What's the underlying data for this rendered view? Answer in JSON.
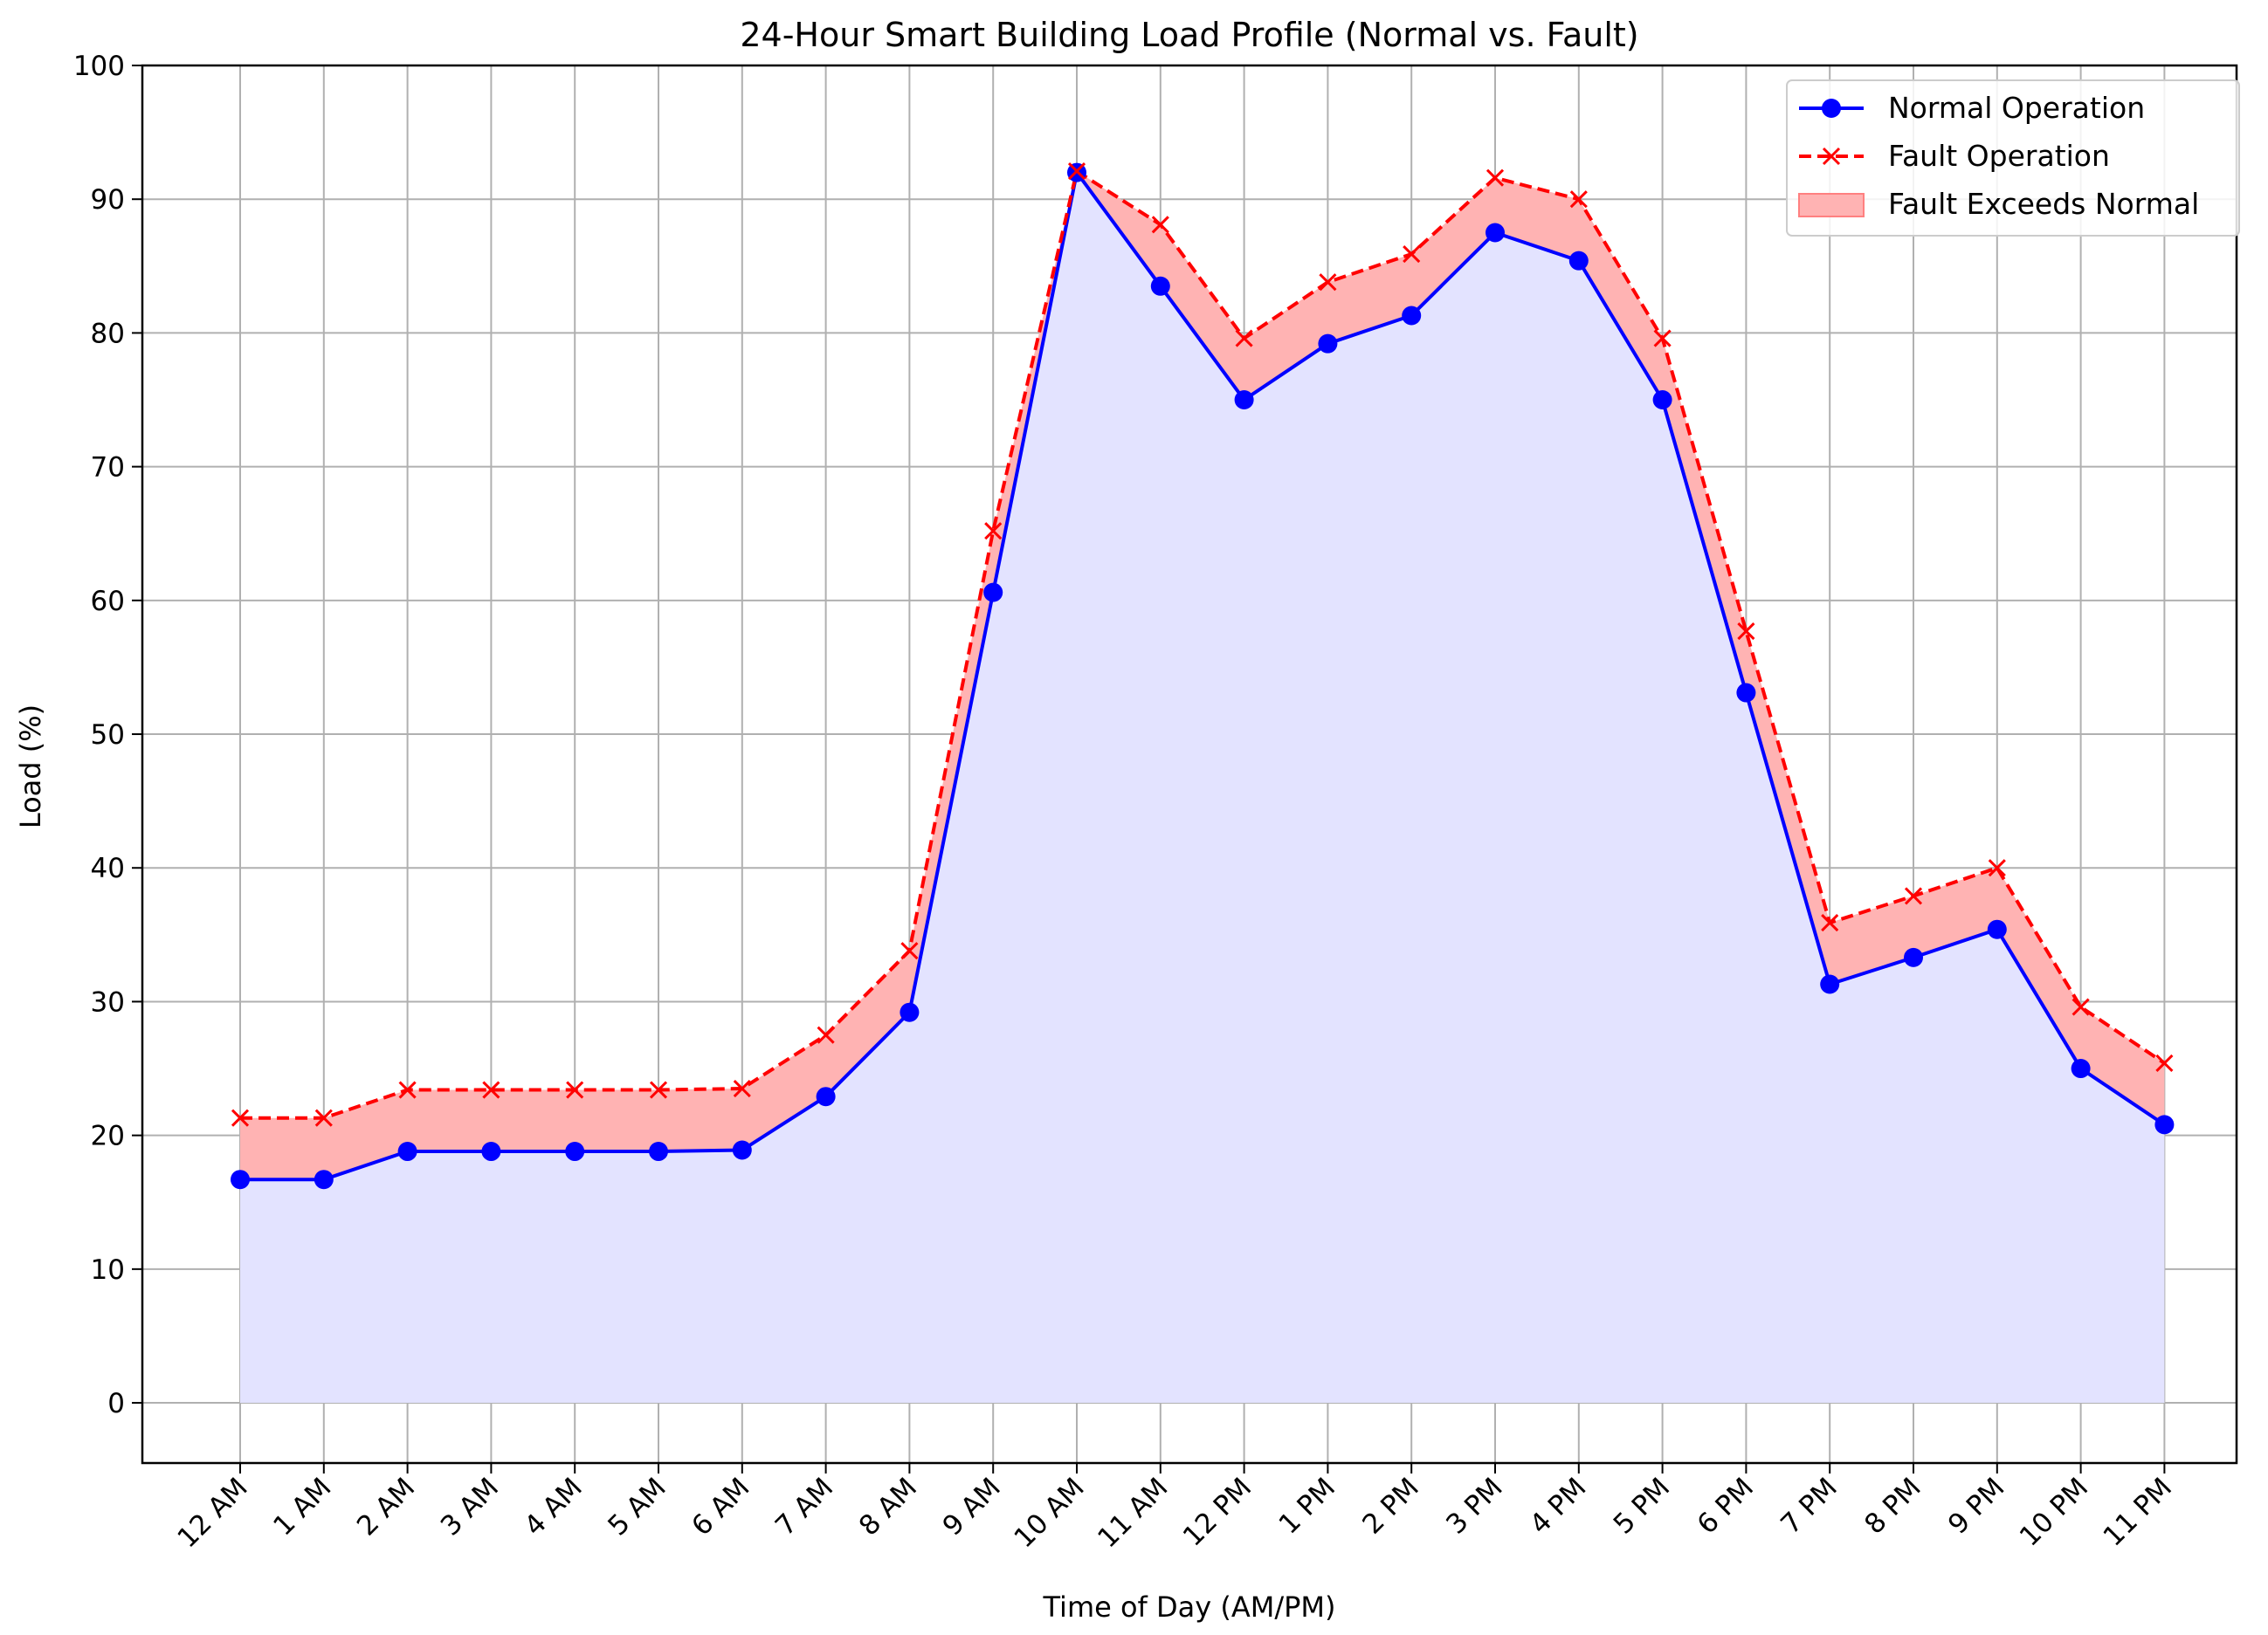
{
  "chart_data": {
    "type": "line",
    "title": "24-Hour Smart Building Load Profile (Normal vs. Fault)",
    "xlabel": "Time of Day (AM/PM)",
    "ylabel": "Load (%)",
    "ylim": [
      -4.5,
      100
    ],
    "yticks": [
      0,
      10,
      20,
      30,
      40,
      50,
      60,
      70,
      80,
      90,
      100
    ],
    "grid": true,
    "legend_position": "top-right",
    "categories": [
      "12 AM",
      "1 AM",
      "2 AM",
      "3 AM",
      "4 AM",
      "5 AM",
      "6 AM",
      "7 AM",
      "8 AM",
      "9 AM",
      "10 AM",
      "11 AM",
      "12 PM",
      "1 PM",
      "2 PM",
      "3 PM",
      "4 PM",
      "5 PM",
      "6 PM",
      "7 PM",
      "8 PM",
      "9 PM",
      "10 PM",
      "11 PM"
    ],
    "series": [
      {
        "name": "Normal Operation",
        "color": "#0000ff",
        "line_style": "solid",
        "marker": "circle",
        "values": [
          16.7,
          16.7,
          18.8,
          18.8,
          18.8,
          18.8,
          18.9,
          22.9,
          29.2,
          60.6,
          92.0,
          83.5,
          75.0,
          79.2,
          81.3,
          87.5,
          85.4,
          75.0,
          53.1,
          31.3,
          33.3,
          35.4,
          25.0,
          20.8
        ]
      },
      {
        "name": "Fault Operation",
        "color": "#ff0000",
        "line_style": "dashed",
        "marker": "x",
        "values": [
          21.3,
          21.3,
          23.4,
          23.4,
          23.4,
          23.4,
          23.5,
          27.5,
          33.8,
          65.2,
          92.1,
          88.1,
          79.6,
          83.8,
          85.9,
          91.6,
          90.0,
          79.6,
          57.7,
          35.9,
          37.9,
          40.0,
          29.6,
          25.4
        ]
      }
    ],
    "fill_normal_color": "#e3e3ff",
    "fill_exceed": {
      "name": "Fault Exceeds Normal",
      "color": "#ffb3b3"
    }
  }
}
